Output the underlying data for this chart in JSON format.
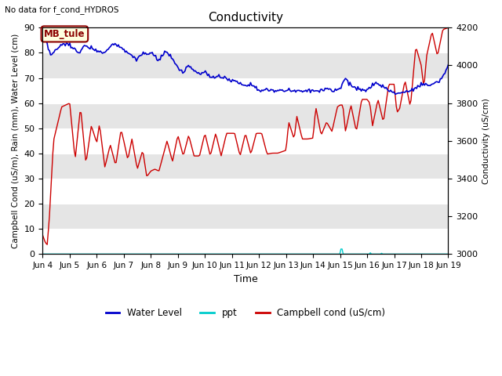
{
  "title": "Conductivity",
  "top_left_text": "No data for f_cond_HYDROS",
  "xlabel": "Time",
  "ylabel_left": "Campbell Cond (uS/m), Rain (mm), Water Level (cm)",
  "ylabel_right": "Conductivity (uS/cm)",
  "annotation_label": "MB_tule",
  "ylim_left": [
    0,
    90
  ],
  "ylim_right": [
    3000,
    4200
  ],
  "yticks_left": [
    0,
    10,
    20,
    30,
    40,
    50,
    60,
    70,
    80,
    90
  ],
  "yticks_right": [
    3000,
    3200,
    3400,
    3600,
    3800,
    4000,
    4200
  ],
  "xtick_labels": [
    "Jun 4",
    "Jun 5",
    "Jun 6",
    "Jun 7",
    "Jun 8",
    "Jun 9",
    "Jun 10",
    "Jun 11",
    "Jun 12",
    "Jun 13",
    "Jun 14",
    "Jun 15",
    "Jun 16",
    "Jun 17",
    "Jun 18",
    "Jun 19"
  ],
  "background_color": "#ffffff",
  "plot_bg_color": "#e5e5e5",
  "grid_color": "#ffffff",
  "water_level_color": "#0000cc",
  "ppt_color": "#00cccc",
  "campbell_color": "#cc0000",
  "legend_entries": [
    "Water Level",
    "ppt",
    "Campbell cond (uS/cm)"
  ],
  "figsize": [
    6.4,
    4.8
  ],
  "dpi": 100
}
